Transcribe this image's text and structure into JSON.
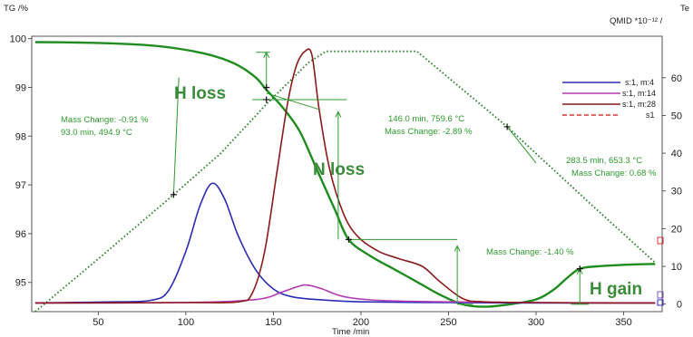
{
  "chart_data": {
    "type": "line",
    "title": "",
    "y_left_label": "TG /%",
    "y_right_label_top": "Te",
    "y_right_label": "QMID *10⁻¹² / ",
    "xlabel": "Time /min",
    "xlim": [
      12,
      372
    ],
    "ylim_left": [
      94.4,
      100.05
    ],
    "ylim_right": [
      -2,
      71
    ],
    "x_ticks": [
      50,
      100,
      150,
      200,
      250,
      300,
      350
    ],
    "y_left_ticks": [
      95,
      96,
      97,
      98,
      99,
      100
    ],
    "y_right_ticks": [
      0,
      10,
      20,
      30,
      40,
      50,
      60
    ],
    "legend": {
      "position": "top-right",
      "entries": [
        {
          "label": "s:1, m:4",
          "color": "#2b2bb5",
          "style": "solid"
        },
        {
          "label": "s:1, m:14",
          "color": "#b43cb4",
          "style": "solid"
        },
        {
          "label": "s:1, m:28",
          "color": "#8b1a1a",
          "style": "solid"
        },
        {
          "label": "s1",
          "color": "#e03030",
          "style": "dashed"
        }
      ]
    },
    "series": [
      {
        "axis": "left",
        "color": "#1e8c1e",
        "style": "solid",
        "x": [
          14,
          40,
          60,
          80,
          95,
          110,
          120,
          130,
          140,
          146,
          155,
          165,
          175,
          185,
          193,
          205,
          220,
          235,
          245,
          258,
          270,
          285,
          300,
          310,
          318,
          325,
          335,
          350,
          368
        ],
        "y": [
          99.93,
          99.92,
          99.9,
          99.86,
          99.8,
          99.7,
          99.6,
          99.45,
          99.2,
          98.95,
          98.6,
          98.1,
          97.3,
          96.5,
          95.88,
          95.55,
          95.25,
          94.95,
          94.75,
          94.55,
          94.5,
          94.55,
          94.65,
          94.85,
          95.1,
          95.28,
          95.33,
          95.36,
          95.38
        ]
      },
      {
        "axis": "right",
        "color": "#1e7a1e",
        "style": "dotted",
        "x": [
          14,
          50,
          93,
          120,
          146,
          170,
          180,
          232,
          283.5,
          330,
          368
        ],
        "y": [
          -2,
          12,
          29,
          40,
          53,
          64,
          67,
          67,
          47,
          27,
          11
        ]
      },
      {
        "axis": "right",
        "color": "#2b2bb5",
        "style": "solid",
        "x": [
          14,
          60,
          80,
          90,
          100,
          108,
          115,
          122,
          130,
          140,
          150,
          160,
          175,
          200,
          250,
          300,
          368
        ],
        "y": [
          0.3,
          0.6,
          1.0,
          3.5,
          14,
          26,
          32,
          28,
          18,
          9,
          4,
          2,
          1.2,
          0.6,
          0.4,
          0.3,
          0.3
        ]
      },
      {
        "axis": "right",
        "color": "#b43cb4",
        "style": "solid",
        "x": [
          14,
          100,
          140,
          155,
          165,
          170,
          178,
          190,
          210,
          250,
          300,
          368
        ],
        "y": [
          0.3,
          0.4,
          1.2,
          3.2,
          4.8,
          5.0,
          4.0,
          2.0,
          1.0,
          0.6,
          0.4,
          0.3
        ]
      },
      {
        "axis": "right",
        "color": "#8b1a1a",
        "style": "solid",
        "x": [
          14,
          100,
          130,
          138,
          145,
          152,
          158,
          163,
          168,
          172,
          176,
          182,
          190,
          198,
          210,
          222,
          235,
          245,
          258,
          270,
          300,
          340,
          368
        ],
        "y": [
          0.3,
          0.4,
          0.6,
          3,
          14,
          35,
          53,
          63,
          67,
          66,
          52,
          36,
          24,
          18,
          14,
          12,
          10,
          6,
          1.5,
          0.6,
          0.4,
          0.3,
          0.3
        ]
      }
    ],
    "markers": [
      {
        "x": 93,
        "y": 29,
        "axis": "right"
      },
      {
        "x": 146,
        "y": 99.0,
        "axis": "left"
      },
      {
        "x": 146,
        "y": 98.75,
        "axis": "left"
      },
      {
        "x": 193,
        "y": 95.88,
        "axis": "left"
      },
      {
        "x": 283.5,
        "y": 47,
        "axis": "right"
      },
      {
        "x": 325,
        "y": 95.28,
        "axis": "left"
      }
    ],
    "annotations": {
      "h_loss_label": "H loss",
      "n_loss_label": "N loss",
      "h_gain_label": "H gain",
      "mc1": "Mass Change: -0.91 %",
      "mc1_time": "93.0 min, 494.9 °C",
      "mc2_time": "146.0 min, 759.6 °C",
      "mc2": "Mass Change: -2.89 %",
      "mc3": "Mass Change: -1.40 %",
      "mc4_time": "283.5 min, 653.3 °C",
      "mc4": "Mass Change: 0.68 %"
    }
  }
}
